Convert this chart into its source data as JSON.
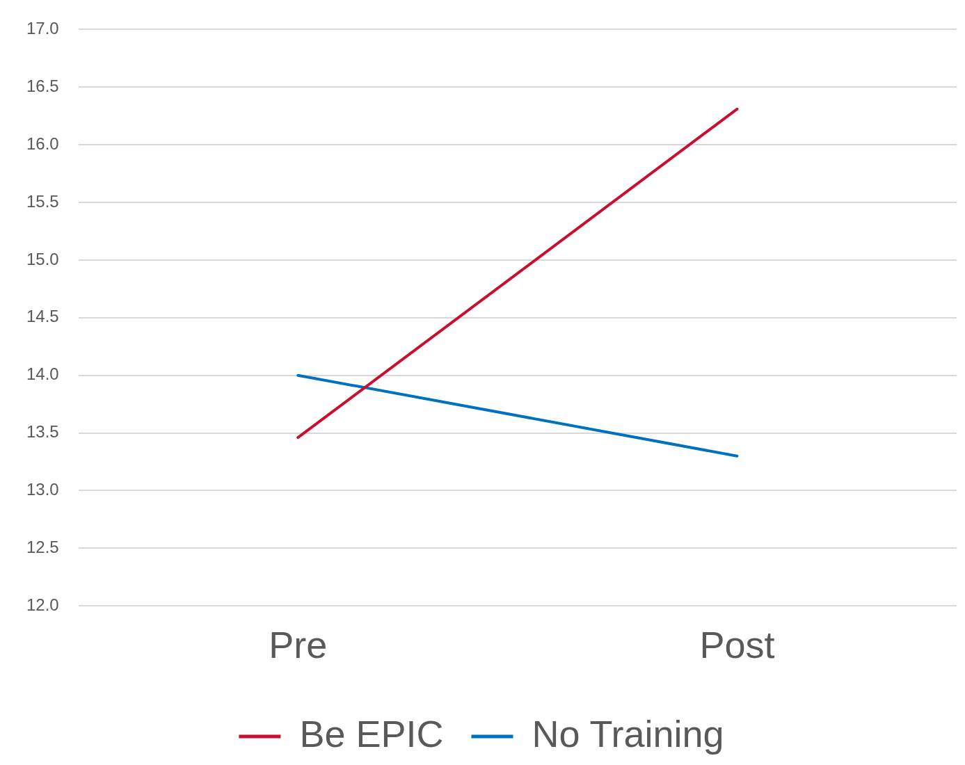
{
  "chart_data": {
    "type": "line",
    "categories": [
      "Pre",
      "Post"
    ],
    "series": [
      {
        "name": "Be EPIC",
        "color": "#c8102e",
        "values": [
          13.46,
          16.31
        ]
      },
      {
        "name": "No Training",
        "color": "#0070c0",
        "values": [
          14.0,
          13.3
        ]
      }
    ],
    "ylim": [
      12,
      17
    ],
    "yticks": [
      {
        "value": 12,
        "label": "12.0"
      },
      {
        "value": 12.5,
        "label": "12.5"
      },
      {
        "value": 13,
        "label": "13.0"
      },
      {
        "value": 13.5,
        "label": "13.5"
      },
      {
        "value": 14,
        "label": "14.0"
      },
      {
        "value": 14.5,
        "label": "14.5"
      },
      {
        "value": 15,
        "label": "15.0"
      },
      {
        "value": 15.5,
        "label": "15.5"
      },
      {
        "value": 16,
        "label": "16.0"
      },
      {
        "value": 16.5,
        "label": "16.5"
      },
      {
        "value": 17,
        "label": "17.0"
      }
    ],
    "grid": "y",
    "legend": "bottom",
    "marker": "none",
    "line_style": "solid"
  }
}
